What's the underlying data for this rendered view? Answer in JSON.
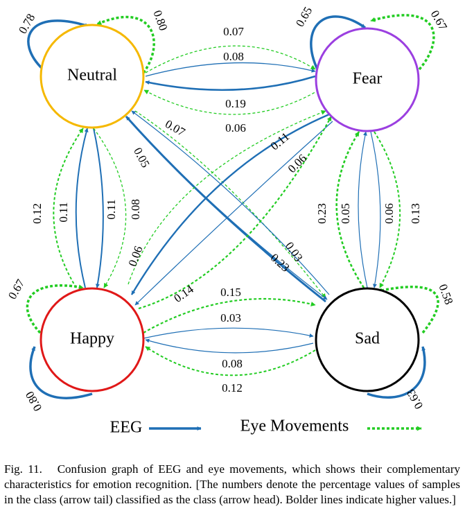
{
  "nodes": [
    {
      "label": "Neutral"
    },
    {
      "label": "Fear"
    },
    {
      "label": "Happy"
    },
    {
      "label": "Sad"
    }
  ],
  "edges": [
    {
      "label": "0.78"
    },
    {
      "label": "0.80"
    },
    {
      "label": "0.65"
    },
    {
      "label": "0.67"
    },
    {
      "label": "0.67"
    },
    {
      "label": "0.80"
    },
    {
      "label": "0.58"
    },
    {
      "label": "0.63"
    },
    {
      "label": "0.07"
    },
    {
      "label": "0.08"
    },
    {
      "label": "0.19"
    },
    {
      "label": "0.06"
    },
    {
      "label": "0.12"
    },
    {
      "label": "0.11"
    },
    {
      "label": "0.11"
    },
    {
      "label": "0.08"
    },
    {
      "label": "0.23"
    },
    {
      "label": "0.05"
    },
    {
      "label": "0.06"
    },
    {
      "label": "0.13"
    },
    {
      "label": "0.15"
    },
    {
      "label": "0.03"
    },
    {
      "label": "0.08"
    },
    {
      "label": "0.12"
    },
    {
      "label": "0.07"
    },
    {
      "label": "0.05"
    },
    {
      "label": "0.23"
    },
    {
      "label": "0.03"
    },
    {
      "label": "0.11"
    },
    {
      "label": "0.06"
    },
    {
      "label": "0.06"
    },
    {
      "label": "0.14"
    }
  ],
  "legend": {
    "eeg": "EEG",
    "eye": "Eye Movements"
  },
  "caption": {
    "figure": "Fig. 11.",
    "text": "Confusion graph of EEG and eye movements, which shows their complementary characteristics for emotion recognition. [The numbers denote the percentage values of samples in the class (arrow tail) classified as the class (arrow head). Bolder lines indicate higher values.]"
  }
}
